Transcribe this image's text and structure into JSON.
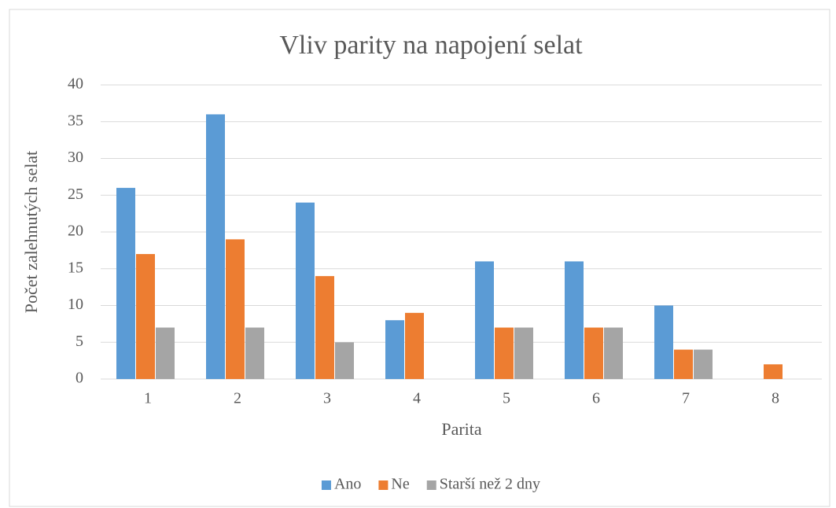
{
  "chart_data": {
    "type": "bar",
    "title": "Vliv parity na napojení selat",
    "x_label": "Parita",
    "y_label": "Počet zalehnutých selat",
    "categories": [
      "1",
      "2",
      "3",
      "4",
      "5",
      "6",
      "7",
      "8"
    ],
    "series": [
      {
        "name": "Ano",
        "color": "#5b9bd5",
        "values": [
          26,
          36,
          24,
          8,
          16,
          16,
          10,
          0
        ]
      },
      {
        "name": "Ne",
        "color": "#ed7d31",
        "values": [
          17,
          19,
          14,
          9,
          7,
          7,
          4,
          2
        ]
      },
      {
        "name": "Starší než 2 dny",
        "color": "#a5a5a5",
        "values": [
          7,
          7,
          5,
          0,
          7,
          7,
          4,
          0
        ]
      }
    ],
    "ylim": [
      0,
      40
    ],
    "yticks": [
      0,
      5,
      10,
      15,
      20,
      25,
      30,
      35,
      40
    ],
    "grid": true,
    "legend": "bottom"
  }
}
